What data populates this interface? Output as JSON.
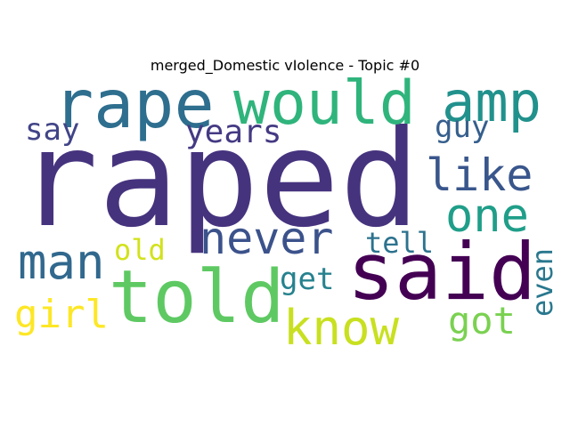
{
  "title": "merged_Domestic vIolence - Topic #0",
  "words": [
    {
      "id": "raped",
      "text": "raped",
      "color": "#46337e"
    },
    {
      "id": "rape",
      "text": "rape",
      "color": "#2e6e8e"
    },
    {
      "id": "would",
      "text": "would",
      "color": "#2fb47c"
    },
    {
      "id": "amp",
      "text": "amp",
      "color": "#21918c"
    },
    {
      "id": "said",
      "text": "said",
      "color": "#440154"
    },
    {
      "id": "told",
      "text": "told",
      "color": "#5ec962"
    },
    {
      "id": "never",
      "text": "never",
      "color": "#3b528b"
    },
    {
      "id": "one",
      "text": "one",
      "color": "#1f9e89"
    },
    {
      "id": "like",
      "text": "like",
      "color": "#39568c"
    },
    {
      "id": "man",
      "text": "man",
      "color": "#31688e"
    },
    {
      "id": "know",
      "text": "know",
      "color": "#c8e020"
    },
    {
      "id": "girl",
      "text": "girl",
      "color": "#fde725"
    },
    {
      "id": "got",
      "text": "got",
      "color": "#7ad151"
    },
    {
      "id": "years",
      "text": "years",
      "color": "#443a83"
    },
    {
      "id": "say",
      "text": "say",
      "color": "#414487"
    },
    {
      "id": "guy",
      "text": "guy",
      "color": "#355f8d"
    },
    {
      "id": "old",
      "text": "old",
      "color": "#d2e21b"
    },
    {
      "id": "tell",
      "text": "tell",
      "color": "#2c728e"
    },
    {
      "id": "get",
      "text": "get",
      "color": "#26828e"
    },
    {
      "id": "even",
      "text": "even",
      "color": "#2a788e"
    }
  ]
}
